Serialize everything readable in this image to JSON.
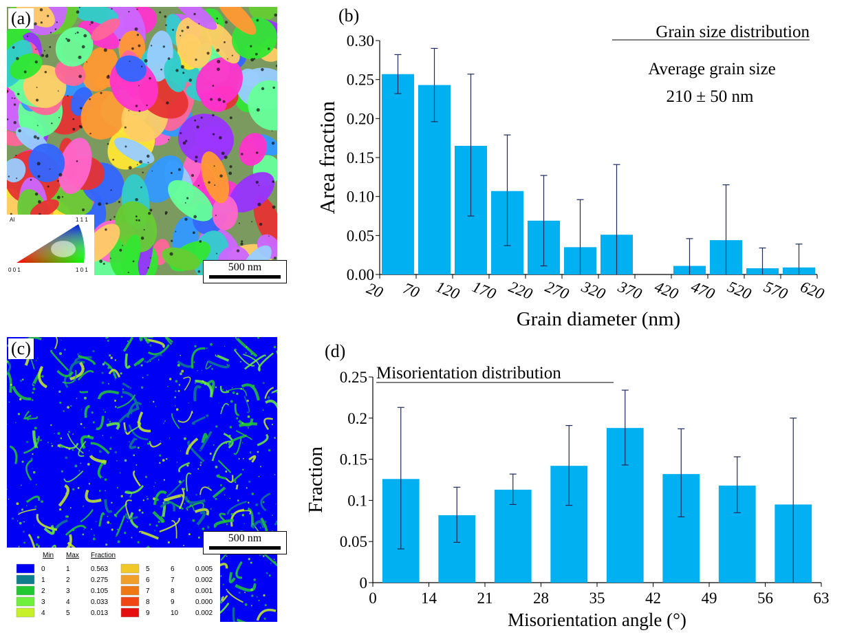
{
  "panels": {
    "a": {
      "label": "(a)",
      "scale_label": "500 nm",
      "ipf_legend": {
        "material": "Al",
        "top": "1 1 1",
        "bottom_left": "0 0 1",
        "bottom_right": "1 0 1"
      }
    },
    "b": {
      "label": "(b)"
    },
    "c": {
      "label": "(c)",
      "scale_label": "500 nm",
      "legend": {
        "headers": [
          "Min",
          "Max",
          "Fraction"
        ],
        "rows": [
          {
            "min": "0",
            "max": "1",
            "fraction": "0.563",
            "color": "#0000f5"
          },
          {
            "min": "1",
            "max": "2",
            "fraction": "0.275",
            "color": "#0f7d8c"
          },
          {
            "min": "2",
            "max": "3",
            "fraction": "0.105",
            "color": "#22c832"
          },
          {
            "min": "3",
            "max": "4",
            "fraction": "0.033",
            "color": "#6ef03c"
          },
          {
            "min": "4",
            "max": "5",
            "fraction": "0.013",
            "color": "#c8f028"
          },
          {
            "min": "5",
            "max": "6",
            "fraction": "0.005",
            "color": "#f0c828"
          },
          {
            "min": "6",
            "max": "7",
            "fraction": "0.002",
            "color": "#f0a028"
          },
          {
            "min": "7",
            "max": "8",
            "fraction": "0.001",
            "color": "#f07814"
          },
          {
            "min": "8",
            "max": "9",
            "fraction": "0.000",
            "color": "#f04614"
          },
          {
            "min": "9",
            "max": "10",
            "fraction": "0.002",
            "color": "#e60f0f"
          }
        ]
      }
    },
    "d": {
      "label": "(d)"
    }
  },
  "chart_data": [
    {
      "id": "grain-size",
      "type": "bar",
      "title": "Grain size distribution",
      "annotation": [
        "Average grain size",
        "210 ± 50 nm"
      ],
      "xlabel": "Grain diameter (nm)",
      "ylabel": "Area fraction",
      "x_ticks": [
        "20",
        "70",
        "120",
        "170",
        "220",
        "270",
        "320",
        "370",
        "420",
        "470",
        "520",
        "570",
        "620"
      ],
      "xlim": [
        20,
        620
      ],
      "ylim": [
        0,
        0.3
      ],
      "y_ticks": [
        "0.00",
        "0.05",
        "0.10",
        "0.15",
        "0.20",
        "0.25",
        "0.30"
      ],
      "bar_color": "#00b0f0",
      "bars": [
        {
          "x0": 20,
          "x1": 70,
          "value": 0.257,
          "err_low": 0.232,
          "err_high": 0.282
        },
        {
          "x0": 70,
          "x1": 120,
          "value": 0.243,
          "err_low": 0.196,
          "err_high": 0.29
        },
        {
          "x0": 120,
          "x1": 170,
          "value": 0.165,
          "err_low": 0.075,
          "err_high": 0.257
        },
        {
          "x0": 170,
          "x1": 220,
          "value": 0.107,
          "err_low": 0.037,
          "err_high": 0.179
        },
        {
          "x0": 220,
          "x1": 270,
          "value": 0.069,
          "err_low": 0.011,
          "err_high": 0.127
        },
        {
          "x0": 270,
          "x1": 320,
          "value": 0.035,
          "err_low": 0.0,
          "err_high": 0.096
        },
        {
          "x0": 320,
          "x1": 370,
          "value": 0.051,
          "err_low": 0.0,
          "err_high": 0.141
        },
        {
          "x0": 420,
          "x1": 470,
          "value": 0.011,
          "err_low": 0.0,
          "err_high": 0.046
        },
        {
          "x0": 470,
          "x1": 520,
          "value": 0.044,
          "err_low": 0.0,
          "err_high": 0.115
        },
        {
          "x0": 520,
          "x1": 570,
          "value": 0.008,
          "err_low": 0.0,
          "err_high": 0.034
        },
        {
          "x0": 570,
          "x1": 620,
          "value": 0.009,
          "err_low": 0.0,
          "err_high": 0.039
        }
      ]
    },
    {
      "id": "misorientation",
      "type": "bar",
      "title": "Misorientation distribution",
      "xlabel": "Misorientation angle (°)",
      "ylabel": "Fraction",
      "x_ticks": [
        "0",
        "14",
        "21",
        "28",
        "35",
        "42",
        "49",
        "56",
        "63"
      ],
      "ylim": [
        0,
        0.25
      ],
      "y_ticks": [
        "0",
        "0.05",
        "0.1",
        "0.15",
        "0.2",
        "0.25"
      ],
      "bar_color": "#00b0f0",
      "bars": [
        {
          "value": 0.126,
          "err_low": 0.041,
          "err_high": 0.213
        },
        {
          "value": 0.082,
          "err_low": 0.049,
          "err_high": 0.116
        },
        {
          "value": 0.113,
          "err_low": 0.095,
          "err_high": 0.132
        },
        {
          "value": 0.142,
          "err_low": 0.094,
          "err_high": 0.191
        },
        {
          "value": 0.188,
          "err_low": 0.143,
          "err_high": 0.234
        },
        {
          "value": 0.132,
          "err_low": 0.08,
          "err_high": 0.187
        },
        {
          "value": 0.118,
          "err_low": 0.085,
          "err_high": 0.153
        },
        {
          "value": 0.095,
          "err_low": 0.0,
          "err_high": 0.2
        }
      ]
    }
  ]
}
